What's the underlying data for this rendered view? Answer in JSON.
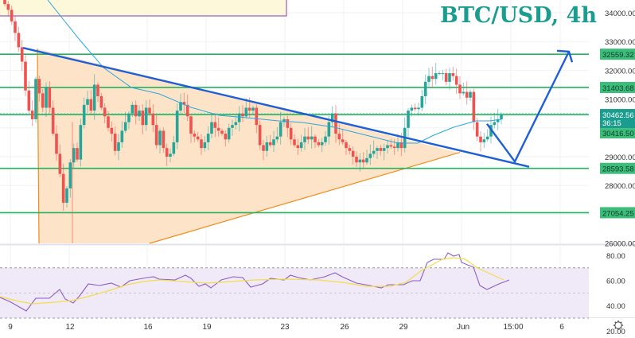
{
  "header": {
    "title": "BTC/USD, 4h"
  },
  "colors": {
    "title": "#1a9d8f",
    "up_candle": "#26a69a",
    "down_candle": "#ef5350",
    "support_resistance": "#22b35e",
    "trendline": "#1f5fd6",
    "triangle_fill": "#fde3c8",
    "triangle_edge": "#f08c1a",
    "ma_line": "#2aa7e0",
    "rsi_line": "#8d5cc9",
    "rsi_ma": "#f2de4a",
    "rsi_band": "#efe9f8",
    "info_box_fill": "#fdf8d9",
    "info_box_border": "#9b59b6",
    "last_price_bg": "#1a9d8f",
    "level_label_bg": "#3dbd7a"
  },
  "price_axis": {
    "ticks": [
      "34000.00",
      "33000.00",
      "32000.00",
      "31000.00",
      "29000.00",
      "28000.00",
      "26000.00"
    ],
    "level_labels": [
      "32559.32",
      "31403.68",
      "28593.58",
      "27054.25"
    ],
    "last_price": "30462.56",
    "countdown": "36:15",
    "prev_price": "30416.50"
  },
  "rsi_axis": {
    "ticks": [
      "80.00",
      "60.00",
      "40.00",
      "20.00"
    ]
  },
  "time_axis": {
    "ticks": [
      "9",
      "12",
      "16",
      "19",
      "23",
      "26",
      "29",
      "Jun",
      "15:00",
      "6"
    ]
  },
  "settings_icon": "gear-icon",
  "chart_data": {
    "type": "candlestick",
    "title": "BTC/USD, 4h",
    "xlabel": "",
    "ylabel": "",
    "x_ticks": [
      "9",
      "12",
      "16",
      "19",
      "23",
      "26",
      "29",
      "Jun",
      "15:00",
      "6"
    ],
    "y_ticks": [
      26000,
      28000,
      29000,
      31000,
      32000,
      33000,
      34000
    ],
    "ylim": [
      25900,
      34500
    ],
    "horizontal_levels": [
      32559.32,
      31403.68,
      30462.56,
      28593.58,
      27054.25
    ],
    "last_price": 30462.56,
    "previous_close_marker": 30416.5,
    "annotations": [
      "Descending trendline from ~32800 (May 9) to ~28650 (Jun 5)",
      "Ascending support line from ~26000 (May 12) to ~29100 (May 31)",
      "Shaded symmetrical triangle between trendlines",
      "Projected path: dip to ~28800 then rise to ~32900"
    ],
    "approx_closes": [
      34300,
      33200,
      32200,
      30300,
      31700,
      30900,
      28700,
      28000,
      29100,
      31300,
      30900,
      30700,
      29300,
      30800,
      30500,
      29800,
      28600,
      30800,
      30600,
      30200,
      29000,
      29500,
      30600,
      30700,
      30300,
      29100,
      29200,
      29800,
      29700,
      28700,
      28700,
      29100,
      29300,
      29400,
      31100,
      32100,
      32200,
      31700,
      31200,
      29700,
      30000,
      30460
    ],
    "rsi": {
      "name": "RSI",
      "levels": [
        70,
        50,
        30
      ],
      "y_ticks": [
        20,
        40,
        60,
        80
      ],
      "ylim": [
        12,
        90
      ],
      "last_value": 52,
      "peak": 84
    }
  }
}
